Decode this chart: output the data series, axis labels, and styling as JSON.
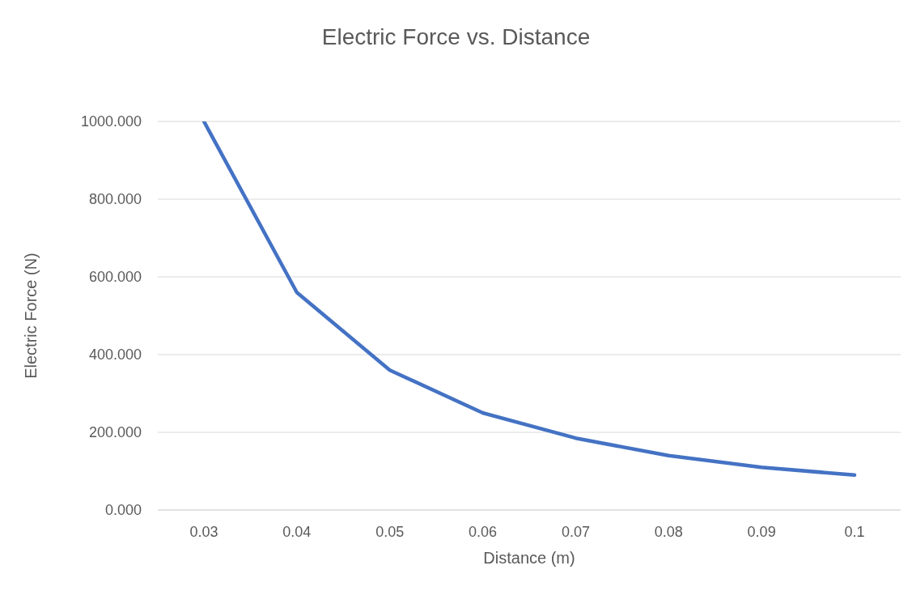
{
  "chart_data": {
    "type": "line",
    "title": "Electric Force vs. Distance",
    "xlabel": "Distance (m)",
    "ylabel": "Electric Force (N)",
    "categories": [
      "0.03",
      "0.04",
      "0.05",
      "0.06",
      "0.07",
      "0.08",
      "0.09",
      "0.1"
    ],
    "series": [
      {
        "color": "#4472c4",
        "values": [
          1000,
          560,
          360,
          250,
          185,
          140,
          110,
          90
        ]
      }
    ],
    "ylim": [
      0,
      1000
    ],
    "yticks": [
      {
        "value": 0,
        "label": "0.000"
      },
      {
        "value": 200,
        "label": "200.000"
      },
      {
        "value": 400,
        "label": "400.000"
      },
      {
        "value": 600,
        "label": "600.000"
      },
      {
        "value": 800,
        "label": "800.000"
      },
      {
        "value": 1000,
        "label": "1000.000"
      }
    ],
    "grid": "y",
    "legend": false,
    "marker": "none",
    "line_style": "solid"
  }
}
